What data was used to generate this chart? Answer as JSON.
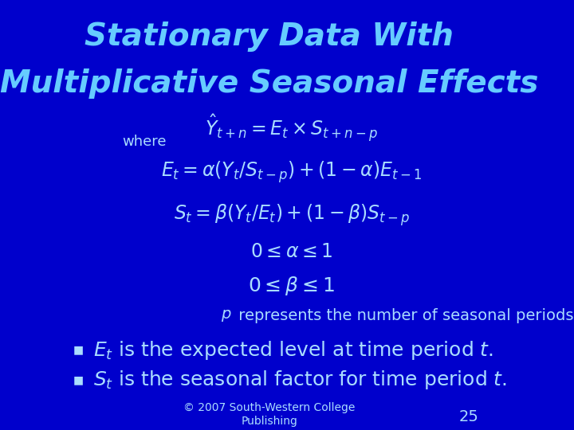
{
  "background_color": "#0000CC",
  "title_line1": "Stationary Data With",
  "title_line2": "Multiplicative Seasonal Effects",
  "title_color": "#66CCFF",
  "title_fontsize": 28,
  "where_label": "where",
  "formula_color": "#AADDFF",
  "formula_fontsize": 17,
  "p_color": "#AADDFF",
  "p_fontsize": 14,
  "bullet_color": "#AADDFF",
  "bullet_fontsize": 18,
  "footer": "© 2007 South-Western College\nPublishing",
  "footer_color": "#AADDFF",
  "footer_fontsize": 10,
  "page_number": "25",
  "page_color": "#AADDFF",
  "page_fontsize": 14
}
